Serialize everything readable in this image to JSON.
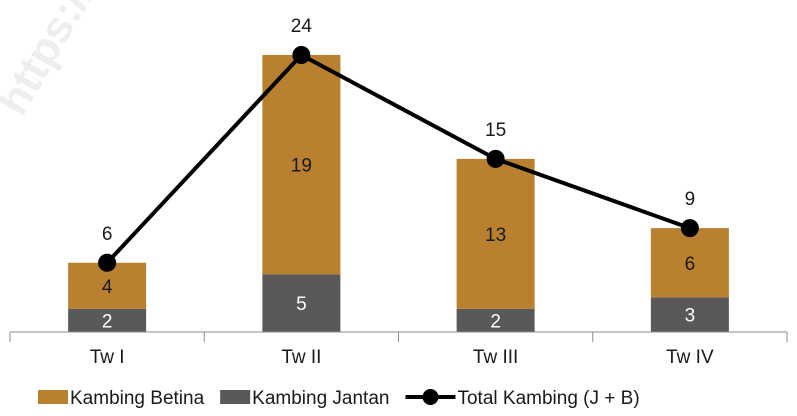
{
  "watermark": "https://",
  "chart_data": {
    "type": "bar",
    "stacked": true,
    "categories": [
      "Tw I",
      "Tw II",
      "Tw III",
      "Tw IV"
    ],
    "series": [
      {
        "name": "Kambing Jantan",
        "values": [
          2,
          5,
          2,
          3
        ],
        "color": "#595959",
        "kind": "bar"
      },
      {
        "name": "Kambing Betina",
        "values": [
          4,
          19,
          13,
          6
        ],
        "color": "#b8802f",
        "kind": "bar"
      },
      {
        "name": "Total Kambing (J + B)",
        "values": [
          6,
          24,
          15,
          9
        ],
        "color": "#000000",
        "kind": "line"
      }
    ],
    "legend": {
      "position": "bottom",
      "order": [
        "Kambing Betina",
        "Kambing Jantan",
        "Total Kambing (J + B)"
      ]
    },
    "ylim": [
      0,
      24
    ],
    "grid": false,
    "data_labels": true,
    "title": "",
    "xlabel": "",
    "ylabel": ""
  }
}
